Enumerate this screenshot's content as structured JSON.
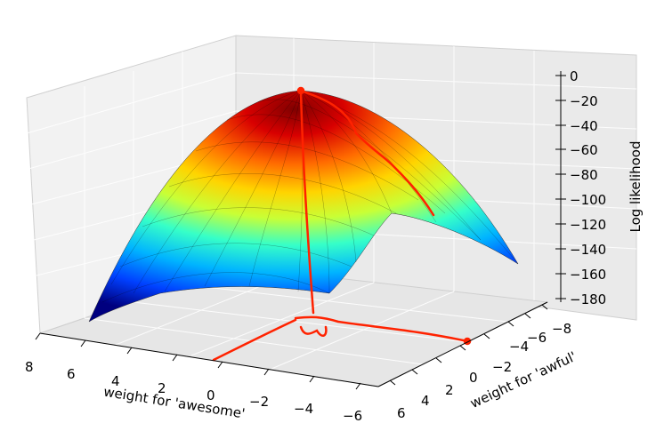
{
  "chart_data": {
    "type": "surface3d",
    "function": "log likelihood surface (peak near origin)",
    "x_axis": {
      "label": "weight for 'awesome'",
      "ticks": [
        "8",
        "6",
        "4",
        "2",
        "0",
        "−2",
        "−4",
        "−6"
      ],
      "range": [
        -6,
        8
      ]
    },
    "y_axis": {
      "label": "weight for 'awful'",
      "ticks": [
        "6",
        "4",
        "2",
        "0",
        "−2",
        "−4",
        "−6",
        "−8"
      ],
      "range": [
        -8,
        6
      ]
    },
    "z_axis": {
      "label": "Log likelihood",
      "ticks": [
        "0",
        "−20",
        "−40",
        "−60",
        "−80",
        "−100",
        "−120",
        "−140",
        "−160",
        "−180"
      ],
      "range": [
        -180,
        0
      ]
    },
    "grid": true,
    "colormap": "jet",
    "annotations": "hand-drawn red lines marking the maximum and its projection onto the weight plane"
  }
}
